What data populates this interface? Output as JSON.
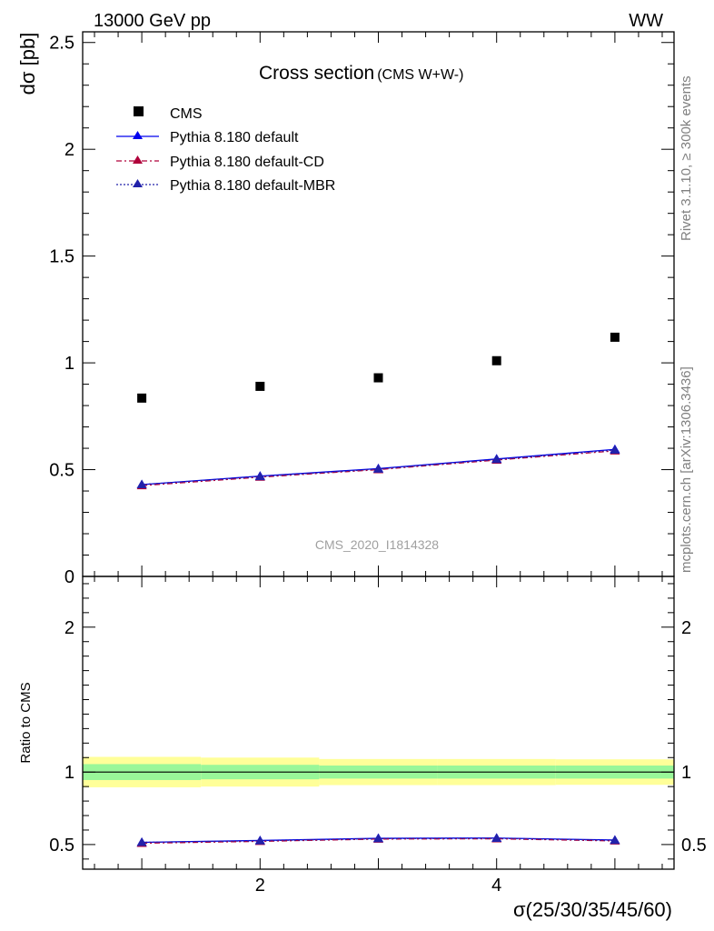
{
  "chart_data": {
    "type": "line",
    "header_left": "13000 GeV pp",
    "header_right": "WW",
    "title": "Cross section",
    "title_sub": "(CMS W+W-)",
    "ylabel": "dσ [pb]",
    "xlabel": "σ(25/30/35/45/60)",
    "watermark": "CMS_2020_I1814328",
    "side_text_top": "Rivet 3.1.10, ≥ 300k events",
    "side_text_bottom": "mcplots.cern.ch [arXiv:1306.3436]",
    "xlim": [
      0.5,
      5.5
    ],
    "ylim": [
      0,
      2.55
    ],
    "x_ticks": [
      2,
      4
    ],
    "x_tick_labels": [
      "2",
      "4"
    ],
    "y_ticks": [
      0,
      0.5,
      1,
      1.5,
      2,
      2.5
    ],
    "y_tick_labels": [
      "0",
      "0.5",
      "1",
      "1.5",
      "2",
      "2.5"
    ],
    "x": [
      1,
      2,
      3,
      4,
      5
    ],
    "data": {
      "name": "CMS",
      "color": "#000000",
      "values": [
        0.835,
        0.89,
        0.93,
        1.01,
        1.12
      ]
    },
    "series": [
      {
        "name": "Pythia 8.180 default",
        "color": "#0000ee",
        "dash": "",
        "values": [
          0.43,
          0.47,
          0.505,
          0.55,
          0.595
        ]
      },
      {
        "name": "Pythia 8.180 default-CD",
        "color": "#b0003a",
        "dash": "6,3,2,3",
        "values": [
          0.425,
          0.465,
          0.5,
          0.545,
          0.588
        ]
      },
      {
        "name": "Pythia 8.180 default-MBR",
        "color": "#2222aa",
        "dash": "2,2",
        "values": [
          0.43,
          0.468,
          0.503,
          0.548,
          0.592
        ]
      }
    ],
    "ratio": {
      "ylabel": "Ratio to CMS",
      "ylim": [
        0.33,
        2.35
      ],
      "y_ticks": [
        0.5,
        1,
        2
      ],
      "y_tick_labels": [
        "0.5",
        "1",
        "2"
      ],
      "band_edges": [
        0.5,
        1.5,
        2.5,
        3.5,
        4.5,
        5.5
      ],
      "band_stat": [
        0.055,
        0.05,
        0.045,
        0.045,
        0.045
      ],
      "band_total": [
        0.105,
        0.1,
        0.09,
        0.09,
        0.088
      ],
      "band_stat_color": "#99f799",
      "band_total_color": "#ffff99",
      "series_values": [
        [
          0.515,
          0.528,
          0.543,
          0.545,
          0.531
        ],
        [
          0.509,
          0.522,
          0.538,
          0.54,
          0.525
        ],
        [
          0.515,
          0.526,
          0.541,
          0.543,
          0.529
        ]
      ]
    }
  }
}
